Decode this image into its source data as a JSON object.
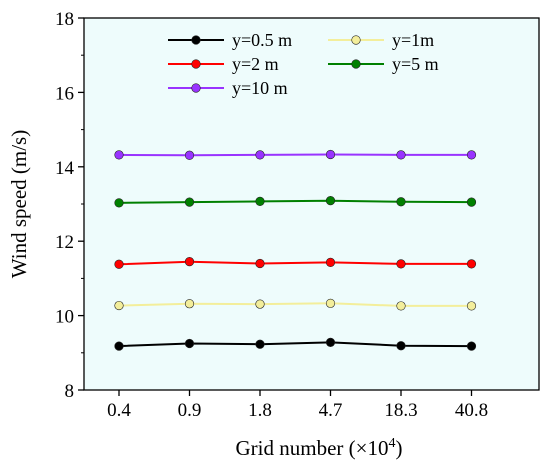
{
  "chart_data": {
    "type": "line",
    "categories": [
      "0.4",
      "0.9",
      "1.8",
      "4.7",
      "18.3",
      "40.8"
    ],
    "xlabel": "Grid number (×10",
    "xlabel_exp": "4",
    "xlabel_end": ")",
    "ylabel": "Wind speed (m/s)",
    "ylim": [
      8,
      18
    ],
    "yticks": [
      8,
      10,
      12,
      14,
      16,
      18
    ],
    "grid": false,
    "legend_position": "top-left",
    "plot_background": "#eefcfc",
    "series": [
      {
        "name": "y=0.5 m",
        "color": "#000000",
        "values": [
          9.18,
          9.25,
          9.23,
          9.28,
          9.19,
          9.18
        ]
      },
      {
        "name": "y=1m",
        "color": "#f3ee9b",
        "values": [
          10.27,
          10.32,
          10.31,
          10.33,
          10.26,
          10.26
        ]
      },
      {
        "name": "y=2 m",
        "color": "#ff0000",
        "values": [
          11.38,
          11.45,
          11.4,
          11.43,
          11.39,
          11.39
        ]
      },
      {
        "name": "y=5 m",
        "color": "#008000",
        "values": [
          13.03,
          13.05,
          13.07,
          13.09,
          13.06,
          13.05
        ]
      },
      {
        "name": "y=10 m",
        "color": "#9933ff",
        "values": [
          14.32,
          14.31,
          14.32,
          14.33,
          14.32,
          14.32
        ]
      }
    ]
  }
}
